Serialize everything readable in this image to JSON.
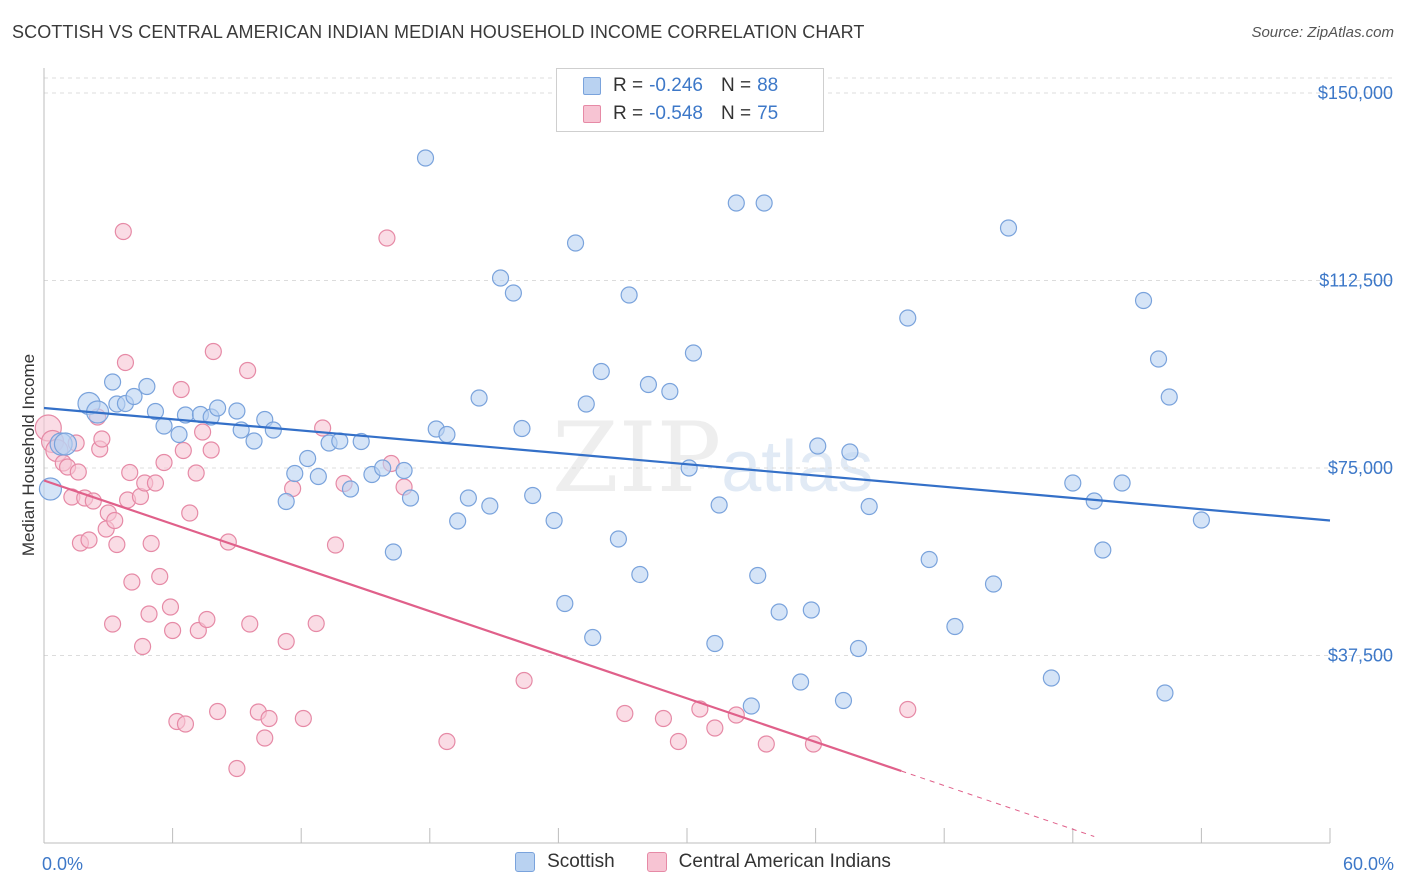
{
  "header": {
    "title": "SCOTTISH VS CENTRAL AMERICAN INDIAN MEDIAN HOUSEHOLD INCOME CORRELATION CHART",
    "source": "Source: ZipAtlas.com"
  },
  "watermark": {
    "zip": "ZIP",
    "atlas": "atlas"
  },
  "legend": {
    "rows": [
      {
        "r_label": "R =",
        "r_value": "-0.246",
        "n_label": "N =",
        "n_value": "88"
      },
      {
        "r_label": "R =",
        "r_value": "-0.548",
        "n_label": "N =",
        "n_value": "75"
      }
    ]
  },
  "colors": {
    "blue_fill": "#b9d2f1",
    "blue_stroke": "#7aa3dc",
    "blue_line": "#3470c8",
    "pink_fill": "#f7c4d3",
    "pink_stroke": "#e68aa6",
    "pink_line": "#e0608a"
  },
  "chart_data": {
    "type": "scatter",
    "title": "SCOTTISH VS CENTRAL AMERICAN INDIAN MEDIAN HOUSEHOLD INCOME CORRELATION CHART",
    "xlabel": "",
    "ylabel": "Median Household Income",
    "xlim": [
      0,
      60
    ],
    "ylim": [
      0,
      153000
    ],
    "x_tick_labels": [
      "0.0%",
      "60.0%"
    ],
    "y_ticks": [
      37500,
      75000,
      112500,
      150000
    ],
    "y_tick_labels": [
      "$37,500",
      "$75,000",
      "$112,500",
      "$150,000"
    ],
    "series": [
      {
        "name": "Scottish",
        "trend": {
          "x": [
            0,
            60
          ],
          "y": [
            87000,
            64500
          ]
        },
        "points": [
          [
            0.3,
            70800
          ],
          [
            0.8,
            79800
          ],
          [
            1.0,
            79800
          ],
          [
            2.1,
            87900
          ],
          [
            2.5,
            86200
          ],
          [
            3.4,
            87800
          ],
          [
            3.2,
            92200
          ],
          [
            3.8,
            87900
          ],
          [
            4.2,
            89300
          ],
          [
            4.8,
            91300
          ],
          [
            5.2,
            86300
          ],
          [
            5.6,
            83400
          ],
          [
            6.3,
            81700
          ],
          [
            6.6,
            85600
          ],
          [
            7.3,
            85700
          ],
          [
            7.8,
            85200
          ],
          [
            8.1,
            87000
          ],
          [
            9.0,
            86400
          ],
          [
            9.2,
            82600
          ],
          [
            9.8,
            80400
          ],
          [
            10.3,
            84700
          ],
          [
            10.7,
            82600
          ],
          [
            11.3,
            68300
          ],
          [
            11.7,
            73900
          ],
          [
            12.3,
            76900
          ],
          [
            12.8,
            73300
          ],
          [
            13.3,
            80000
          ],
          [
            13.8,
            80400
          ],
          [
            14.3,
            70800
          ],
          [
            14.8,
            80300
          ],
          [
            15.3,
            73700
          ],
          [
            15.8,
            75000
          ],
          [
            16.3,
            58200
          ],
          [
            16.8,
            74500
          ],
          [
            17.1,
            69000
          ],
          [
            17.8,
            137000
          ],
          [
            18.3,
            82800
          ],
          [
            18.8,
            81700
          ],
          [
            19.3,
            64400
          ],
          [
            19.8,
            69000
          ],
          [
            20.3,
            89000
          ],
          [
            20.8,
            67400
          ],
          [
            21.3,
            113000
          ],
          [
            21.9,
            110000
          ],
          [
            22.3,
            82900
          ],
          [
            22.8,
            69500
          ],
          [
            23.8,
            64500
          ],
          [
            24.3,
            47900
          ],
          [
            24.8,
            120000
          ],
          [
            25.3,
            87800
          ],
          [
            25.6,
            41100
          ],
          [
            26.0,
            94300
          ],
          [
            26.8,
            60800
          ],
          [
            27.3,
            109600
          ],
          [
            27.8,
            53700
          ],
          [
            28.2,
            91700
          ],
          [
            29.2,
            90300
          ],
          [
            30.1,
            75000
          ],
          [
            30.3,
            98000
          ],
          [
            31.3,
            39900
          ],
          [
            31.5,
            67600
          ],
          [
            32.3,
            128000
          ],
          [
            33.0,
            27400
          ],
          [
            33.3,
            53500
          ],
          [
            33.6,
            128000
          ],
          [
            34.3,
            46200
          ],
          [
            35.3,
            32200
          ],
          [
            35.8,
            46600
          ],
          [
            36.1,
            79400
          ],
          [
            37.3,
            28500
          ],
          [
            37.6,
            78200
          ],
          [
            38.0,
            38900
          ],
          [
            38.5,
            67300
          ],
          [
            40.3,
            105000
          ],
          [
            41.3,
            56700
          ],
          [
            42.5,
            43300
          ],
          [
            44.3,
            51800
          ],
          [
            45.0,
            123000
          ],
          [
            47.0,
            33000
          ],
          [
            48.0,
            72000
          ],
          [
            49.0,
            68400
          ],
          [
            49.4,
            58600
          ],
          [
            50.3,
            72000
          ],
          [
            51.3,
            108500
          ],
          [
            52.0,
            96800
          ],
          [
            52.3,
            30000
          ],
          [
            52.5,
            89200
          ],
          [
            54.0,
            64600
          ]
        ],
        "sizes": [
          3,
          3,
          3,
          3,
          3,
          2,
          2,
          2,
          2,
          2,
          2,
          2,
          2,
          2,
          2,
          2,
          2,
          2,
          2,
          2,
          2,
          2,
          2,
          2,
          2,
          2,
          2,
          2,
          2,
          2,
          2,
          2,
          2,
          2,
          2,
          2,
          2,
          2,
          2,
          2,
          2,
          2,
          2,
          2,
          2,
          2,
          2,
          2,
          2,
          2,
          2,
          2,
          2,
          2,
          2,
          2,
          2,
          2,
          2,
          2,
          2,
          2,
          2,
          2,
          2,
          2,
          2,
          2,
          2,
          2,
          2,
          2,
          2,
          2,
          2,
          2,
          2,
          2,
          2,
          2,
          2,
          2,
          2,
          2,
          2,
          2,
          2,
          2
        ]
      },
      {
        "name": "Central American Indians",
        "trend": {
          "x": [
            0,
            40
          ],
          "y": [
            72500,
            14400
          ]
        },
        "trend_dashed": {
          "x": [
            40,
            49
          ],
          "y": [
            14400,
            1300
          ]
        },
        "points": [
          [
            0.2,
            83000
          ],
          [
            0.4,
            80300
          ],
          [
            0.6,
            78500
          ],
          [
            0.9,
            76000
          ],
          [
            1.1,
            75200
          ],
          [
            1.3,
            69200
          ],
          [
            1.5,
            80000
          ],
          [
            1.6,
            74200
          ],
          [
            1.7,
            60000
          ],
          [
            1.9,
            69000
          ],
          [
            2.1,
            60600
          ],
          [
            2.3,
            68400
          ],
          [
            2.5,
            85200
          ],
          [
            2.6,
            78800
          ],
          [
            2.7,
            80800
          ],
          [
            2.9,
            62800
          ],
          [
            3.0,
            66000
          ],
          [
            3.3,
            64500
          ],
          [
            3.4,
            59700
          ],
          [
            3.2,
            43800
          ],
          [
            3.7,
            122300
          ],
          [
            3.8,
            96100
          ],
          [
            3.9,
            68600
          ],
          [
            4.0,
            74100
          ],
          [
            4.1,
            52200
          ],
          [
            4.5,
            69300
          ],
          [
            4.6,
            39300
          ],
          [
            4.7,
            72000
          ],
          [
            4.9,
            45800
          ],
          [
            5.0,
            59900
          ],
          [
            5.2,
            72000
          ],
          [
            5.4,
            53300
          ],
          [
            5.6,
            76100
          ],
          [
            5.9,
            47200
          ],
          [
            6.0,
            42500
          ],
          [
            6.2,
            24300
          ],
          [
            6.4,
            90700
          ],
          [
            6.5,
            78500
          ],
          [
            6.6,
            23800
          ],
          [
            6.8,
            66000
          ],
          [
            7.1,
            74000
          ],
          [
            7.2,
            42500
          ],
          [
            7.4,
            82200
          ],
          [
            7.6,
            44700
          ],
          [
            7.8,
            78600
          ],
          [
            7.9,
            98300
          ],
          [
            8.1,
            26300
          ],
          [
            8.6,
            60200
          ],
          [
            9.0,
            14900
          ],
          [
            9.5,
            94500
          ],
          [
            9.6,
            43800
          ],
          [
            10.0,
            26200
          ],
          [
            10.3,
            21000
          ],
          [
            10.5,
            24900
          ],
          [
            11.3,
            40300
          ],
          [
            11.6,
            70900
          ],
          [
            12.1,
            24900
          ],
          [
            12.7,
            43900
          ],
          [
            13.0,
            83000
          ],
          [
            13.6,
            59600
          ],
          [
            14.0,
            71900
          ],
          [
            16.0,
            121000
          ],
          [
            16.2,
            75900
          ],
          [
            16.8,
            71200
          ],
          [
            18.8,
            20300
          ],
          [
            22.4,
            32500
          ],
          [
            27.1,
            25900
          ],
          [
            28.9,
            24900
          ],
          [
            29.6,
            20300
          ],
          [
            30.6,
            26800
          ],
          [
            31.3,
            23000
          ],
          [
            32.3,
            25600
          ],
          [
            33.7,
            19800
          ],
          [
            35.9,
            19800
          ],
          [
            40.3,
            26700
          ]
        ],
        "sizes": [
          4,
          3,
          3,
          2,
          2,
          2,
          2,
          2,
          2,
          2,
          2,
          2,
          2,
          2,
          2,
          2,
          2,
          2,
          2,
          2,
          2,
          2,
          2,
          2,
          2,
          2,
          2,
          2,
          2,
          2,
          2,
          2,
          2,
          2,
          2,
          2,
          2,
          2,
          2,
          2,
          2,
          2,
          2,
          2,
          2,
          2,
          2,
          2,
          2,
          2,
          2,
          2,
          2,
          2,
          2,
          2,
          2,
          2,
          2,
          2,
          2,
          2,
          2,
          2,
          2,
          2,
          2,
          2,
          2,
          2,
          2,
          2,
          2,
          2,
          2
        ]
      }
    ]
  }
}
